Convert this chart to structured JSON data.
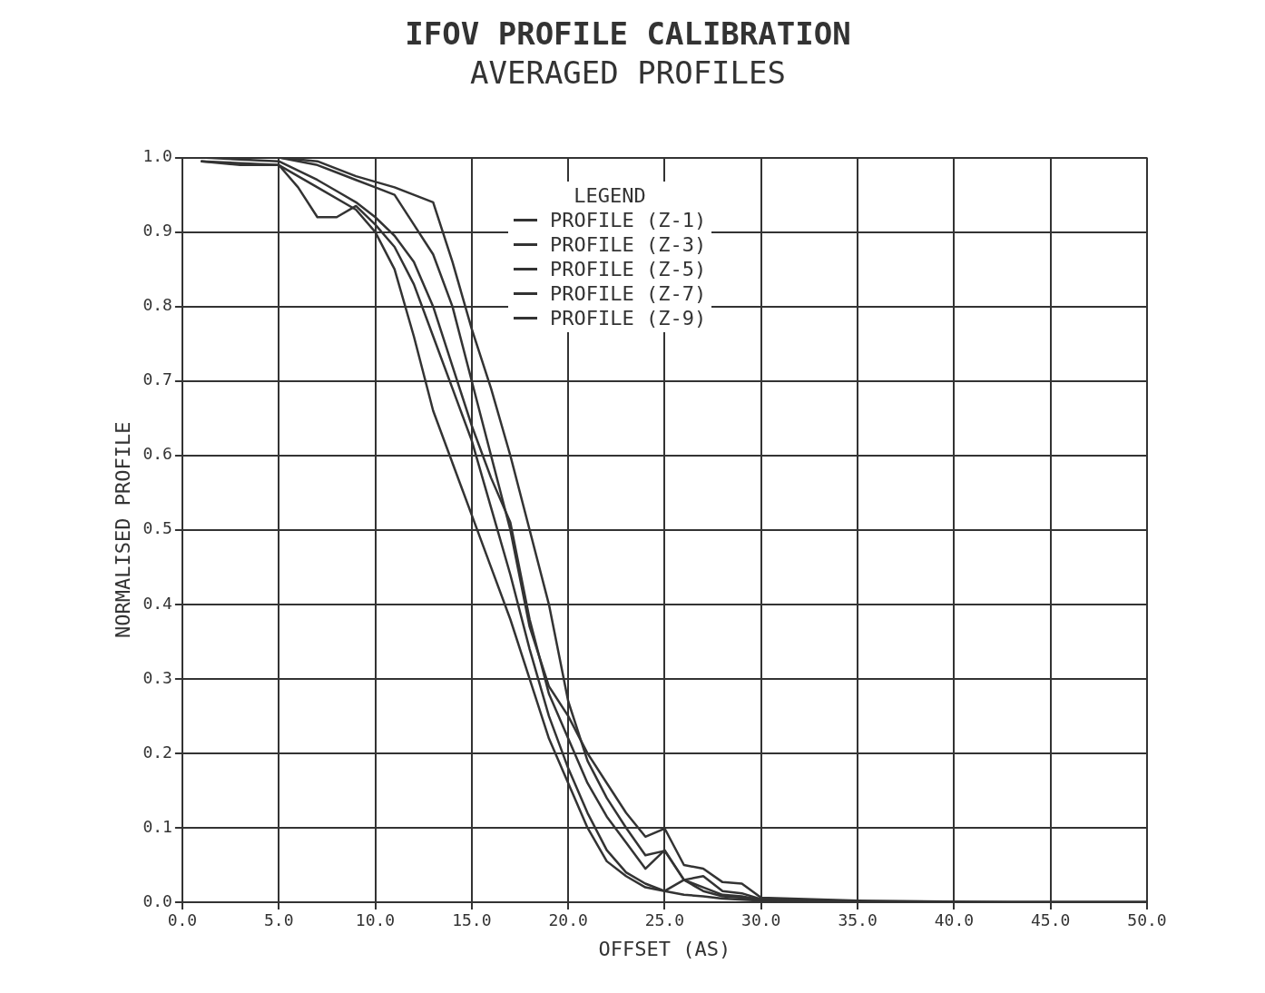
{
  "chart_data": {
    "type": "line",
    "title": "IFOV PROFILE CALIBRATION",
    "subtitle": "AVERAGED PROFILES",
    "xlabel": "OFFSET (AS)",
    "ylabel": "NORMALISED PROFILE",
    "legend_title": "LEGEND",
    "legend": "top",
    "grid": true,
    "line_style": "solid",
    "xlim": [
      0,
      50
    ],
    "xticks": [
      {
        "value": 0,
        "label": "0.0"
      },
      {
        "value": 5,
        "label": "5.0"
      },
      {
        "value": 10,
        "label": "10.0"
      },
      {
        "value": 15,
        "label": "15.0"
      },
      {
        "value": 20,
        "label": "20.0"
      },
      {
        "value": 25,
        "label": "25.0"
      },
      {
        "value": 30,
        "label": "30.0"
      },
      {
        "value": 35,
        "label": "35.0"
      },
      {
        "value": 40,
        "label": "40.0"
      },
      {
        "value": 45,
        "label": "45.0"
      },
      {
        "value": 50,
        "label": "50.0"
      }
    ],
    "ylim": [
      0,
      1
    ],
    "yticks": [
      {
        "value": 0,
        "label": "0.0"
      },
      {
        "value": 0.1,
        "label": "0.1"
      },
      {
        "value": 0.2,
        "label": "0.2"
      },
      {
        "value": 0.3,
        "label": "0.3"
      },
      {
        "value": 0.4,
        "label": "0.4"
      },
      {
        "value": 0.5,
        "label": "0.5"
      },
      {
        "value": 0.6,
        "label": "0.6"
      },
      {
        "value": 0.7,
        "label": "0.7"
      },
      {
        "value": 0.8,
        "label": "0.8"
      },
      {
        "value": 0.9,
        "label": "0.9"
      },
      {
        "value": 1,
        "label": "1.0"
      }
    ],
    "series": [
      {
        "name": "PROFILE (Z-1)",
        "color": "#333333",
        "x": [
          1,
          5,
          6,
          7,
          8,
          9,
          10,
          11,
          12,
          13,
          14,
          15,
          16,
          17,
          18,
          19,
          20,
          21,
          22,
          23,
          24,
          25,
          26,
          27,
          28,
          29,
          30,
          35,
          43,
          50
        ],
        "values": [
          0.995,
          0.99,
          0.96,
          0.92,
          0.92,
          0.935,
          0.91,
          0.88,
          0.83,
          0.76,
          0.69,
          0.62,
          0.53,
          0.44,
          0.34,
          0.25,
          0.18,
          0.12,
          0.07,
          0.04,
          0.025,
          0.015,
          0.03,
          0.02,
          0.01,
          0.008,
          0.003,
          0,
          0,
          0
        ]
      },
      {
        "name": "PROFILE (Z-3)",
        "color": "#333333",
        "x": [
          1,
          3,
          5,
          7,
          9,
          10,
          11,
          12,
          13,
          14,
          15,
          16,
          17,
          18,
          19,
          20,
          21,
          22,
          23,
          24,
          25,
          26,
          27,
          28,
          30,
          35,
          43,
          50
        ],
        "values": [
          0.995,
          0.99,
          0.99,
          0.96,
          0.93,
          0.9,
          0.85,
          0.76,
          0.66,
          0.59,
          0.52,
          0.45,
          0.38,
          0.3,
          0.22,
          0.16,
          0.1,
          0.055,
          0.035,
          0.02,
          0.015,
          0.01,
          0.008,
          0.005,
          0.002,
          0,
          0,
          0
        ]
      },
      {
        "name": "PROFILE (Z-5)",
        "color": "#333333",
        "x": [
          1,
          5,
          7,
          8,
          9,
          10,
          11,
          12,
          13,
          14,
          15,
          16,
          17,
          18,
          19,
          20,
          21,
          22,
          23,
          24,
          25,
          26,
          27,
          28,
          29,
          30,
          35,
          43,
          50
        ],
        "values": [
          1,
          0.995,
          0.97,
          0.955,
          0.94,
          0.92,
          0.895,
          0.86,
          0.8,
          0.72,
          0.64,
          0.57,
          0.51,
          0.38,
          0.28,
          0.22,
          0.16,
          0.115,
          0.08,
          0.045,
          0.07,
          0.03,
          0.015,
          0.008,
          0.006,
          0.003,
          0,
          0,
          0
        ]
      },
      {
        "name": "PROFILE (Z-7)",
        "color": "#333333",
        "x": [
          1,
          5,
          7,
          8,
          9,
          10,
          11,
          12,
          13,
          14,
          15,
          16,
          17,
          18,
          19,
          20,
          21,
          22,
          23,
          24,
          25,
          26,
          27,
          28,
          29,
          30,
          35,
          43,
          50
        ],
        "values": [
          1,
          1,
          0.99,
          0.98,
          0.97,
          0.96,
          0.95,
          0.91,
          0.87,
          0.8,
          0.7,
          0.6,
          0.5,
          0.37,
          0.29,
          0.25,
          0.2,
          0.16,
          0.12,
          0.088,
          0.099,
          0.05,
          0.045,
          0.027,
          0.025,
          0.006,
          0.002,
          0,
          0
        ]
      },
      {
        "name": "PROFILE (Z-9)",
        "color": "#333333",
        "x": [
          1,
          5,
          7,
          9,
          11,
          12,
          13,
          14,
          15,
          16,
          17,
          18,
          19,
          20,
          21,
          22,
          23,
          24,
          25,
          26,
          27,
          28,
          29,
          30,
          35,
          43,
          50
        ],
        "values": [
          1,
          1,
          0.995,
          0.975,
          0.96,
          0.95,
          0.94,
          0.86,
          0.77,
          0.69,
          0.6,
          0.5,
          0.4,
          0.27,
          0.19,
          0.14,
          0.1,
          0.063,
          0.069,
          0.03,
          0.035,
          0.015,
          0.012,
          0.004,
          0,
          0,
          0
        ]
      }
    ]
  }
}
